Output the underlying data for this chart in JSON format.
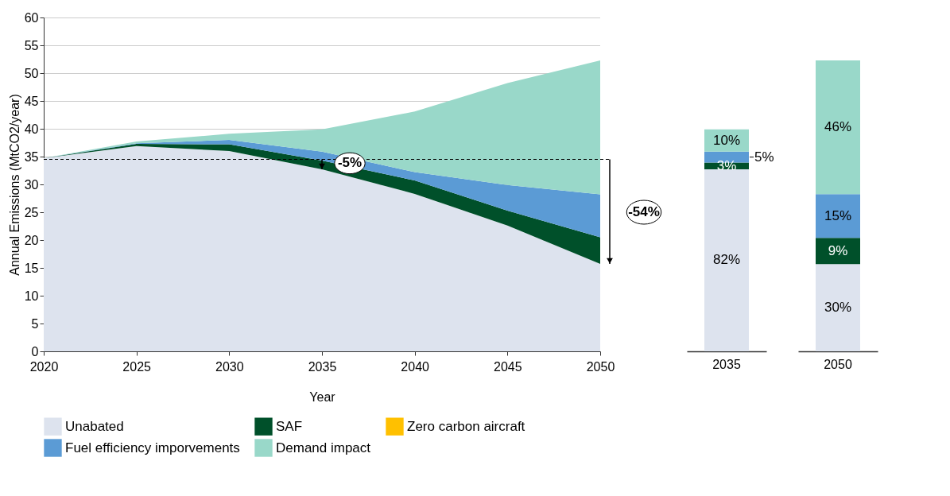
{
  "chart_data": [
    {
      "type": "area",
      "stacked": true,
      "x": [
        2020,
        2025,
        2030,
        2035,
        2040,
        2045,
        2050
      ],
      "xlim": [
        2020,
        2050
      ],
      "xticks": [
        2020,
        2025,
        2030,
        2035,
        2040,
        2045,
        2050
      ],
      "ylim": [
        0,
        60
      ],
      "yticks": [
        0,
        5,
        10,
        15,
        20,
        25,
        30,
        35,
        40,
        45,
        50,
        55,
        60
      ],
      "xlabel": "Year",
      "ylabel": "Annual Emissions (MtCO2/year)",
      "grid": "y",
      "legend": "bottom",
      "series": [
        {
          "name": "Unabated",
          "color": "#dde3ee",
          "values": [
            34.7,
            36.9,
            36.0,
            32.7,
            28.3,
            22.6,
            15.7
          ]
        },
        {
          "name": "SAF",
          "color": "#00502a",
          "values": [
            0,
            0.4,
            1.2,
            1.6,
            2.4,
            2.7,
            4.8
          ]
        },
        {
          "name": "Zero carbon aircraft",
          "color": "#ffc000",
          "values": [
            null,
            null,
            null,
            null,
            null,
            null,
            null
          ]
        },
        {
          "name": "Fuel efficiency imporvements",
          "color": "#5b9bd5",
          "values": [
            0,
            0.1,
            0.8,
            1.6,
            1.5,
            4.6,
            7.7
          ]
        },
        {
          "name": "Demand impact",
          "color": "#99d8c9",
          "values": [
            0,
            0.3,
            1.1,
            4.0,
            10.9,
            18.3,
            24.1
          ]
        }
      ],
      "ref_lines": [
        {
          "axis": "y",
          "value": 34.5,
          "line_style": "dashed"
        }
      ],
      "annotations": [
        {
          "text": "-5%",
          "x": 2035,
          "y": 33.8
        },
        {
          "text": "-54%",
          "x": 2050,
          "y": 25
        }
      ]
    },
    {
      "type": "bar",
      "stacked": true,
      "categories": [
        "2035"
      ],
      "tick_labels": "x",
      "series": [
        {
          "color": "#dde3ee",
          "values": [
            82
          ],
          "value_labels": [
            "82%"
          ]
        },
        {
          "color": "#00502a",
          "values": [
            3
          ],
          "value_labels": [
            "3%"
          ]
        },
        {
          "color": "#5b9bd5",
          "values": [
            5
          ],
          "value_labels": [
            "5%"
          ]
        },
        {
          "color": "#99d8c9",
          "values": [
            10
          ],
          "value_labels": [
            "10%"
          ]
        }
      ]
    },
    {
      "type": "bar",
      "stacked": true,
      "categories": [
        "2050"
      ],
      "tick_labels": "x",
      "series": [
        {
          "color": "#dde3ee",
          "values": [
            30
          ],
          "value_labels": [
            "30%"
          ]
        },
        {
          "color": "#00502a",
          "values": [
            9
          ],
          "value_labels": [
            "9%"
          ]
        },
        {
          "color": "#5b9bd5",
          "values": [
            15
          ],
          "value_labels": [
            "15%"
          ]
        },
        {
          "color": "#99d8c9",
          "values": [
            46
          ],
          "value_labels": [
            "46%"
          ]
        }
      ]
    }
  ]
}
